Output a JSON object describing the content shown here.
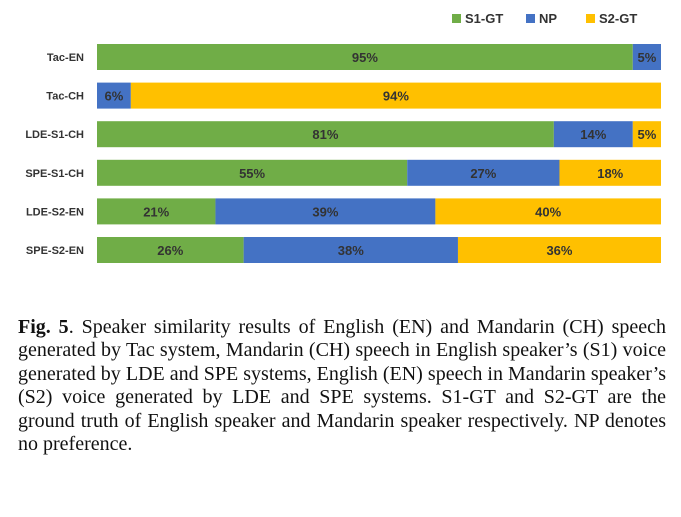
{
  "chart_data": {
    "type": "bar",
    "orientation": "horizontal",
    "stacked": true,
    "categories": [
      "Tac-EN",
      "Tac-CH",
      "LDE-S1-CH",
      "SPE-S1-CH",
      "LDE-S2-EN",
      "SPE-S2-EN"
    ],
    "series": [
      {
        "name": "S1-GT",
        "color": "#70ad47",
        "values": [
          95,
          0,
          81,
          55,
          21,
          26
        ],
        "labels": [
          "95%",
          "",
          "81%",
          "55%",
          "21%",
          "26%"
        ]
      },
      {
        "name": "NP",
        "color": "#4472c4",
        "values": [
          5,
          6,
          14,
          27,
          39,
          38
        ],
        "labels": [
          "5%",
          "6%",
          "14%",
          "27%",
          "39%",
          "38%"
        ]
      },
      {
        "name": "S2-GT",
        "color": "#ffc000",
        "values": [
          0,
          94,
          5,
          18,
          40,
          36
        ],
        "labels": [
          "",
          "94%",
          "5%",
          "18%",
          "40%",
          "36%"
        ]
      }
    ],
    "xlim": [
      0,
      100
    ],
    "grid": false,
    "legend_position": "top-right"
  },
  "caption": {
    "label": "Fig. 5",
    "text": ".  Speaker similarity results of English (EN) and Mandarin (CH) speech generated by Tac system, Mandarin (CH) speech in English speaker’s (S1) voice generated by LDE and SPE systems, English (EN) speech in Mandarin speaker’s (S2) voice generated by LDE and SPE systems.  S1-GT and S2-GT are the ground truth of English speaker and Mandarin speaker respectively. NP denotes no preference."
  }
}
